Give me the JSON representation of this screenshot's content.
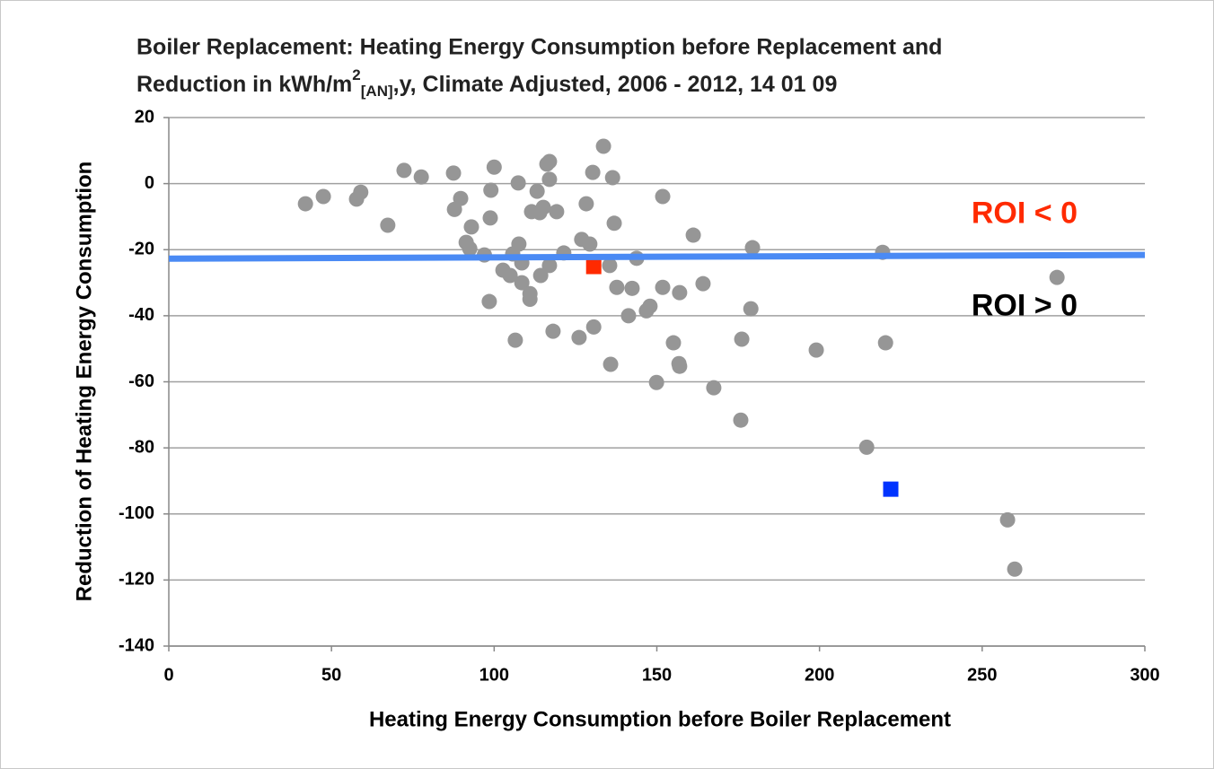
{
  "chart_data": {
    "type": "scatter",
    "title": [
      "Boiler Replacement: Heating Energy Consumption before Replacement and",
      "Reduction in kWh/m",
      "2",
      "[AN]",
      ",y, Climate Adjusted, 2006 - 2012, 14 01 09"
    ],
    "xlabel": "Heating Energy Consumption before Boiler Replacement",
    "ylabel": "Reduction of Heating Energy Consumption",
    "xlim": [
      0,
      300
    ],
    "xticks": [
      0,
      50,
      100,
      150,
      200,
      250,
      300
    ],
    "ylim": [
      -140,
      20
    ],
    "yticks": [
      -140,
      -120,
      -100,
      -80,
      -60,
      -40,
      -20,
      0,
      20
    ],
    "grid": true,
    "series": [
      {
        "color": "#969696",
        "marker": "circle",
        "x": [
          42,
          47.5,
          57.7,
          59,
          67.3,
          72.3,
          77.6,
          87.5,
          87.8,
          89.7,
          91.4,
          93,
          92.5,
          97,
          98.5,
          98.8,
          99,
          100,
          102.7,
          104.9,
          105.7,
          106.5,
          107.4,
          107.6,
          108.5,
          108.5,
          111,
          111,
          111.5,
          113.2,
          114.3,
          114,
          115.1,
          116.2,
          117,
          117,
          117,
          118.1,
          119.2,
          121.4,
          126.1,
          126.9,
          128.3,
          129.4,
          130.3,
          130.6,
          133.6,
          135.5,
          135.8,
          136.4,
          136.9,
          137.7,
          141.3,
          142.4,
          143.8,
          146.8,
          147.9,
          149.9,
          151.8,
          151.8,
          155.1,
          156.8,
          157,
          157,
          161.2,
          164.2,
          167.5,
          175.8,
          176.1,
          178.9,
          179.4,
          199,
          214.5,
          219.4,
          220.3,
          257.8,
          260,
          273
        ],
        "values": [
          -6.1,
          -3.9,
          -4.7,
          -2.6,
          -12.6,
          4,
          2,
          3.2,
          -7.8,
          -4.5,
          -17.8,
          -13.1,
          -19.7,
          -21.6,
          -35.7,
          -10.4,
          -2,
          5,
          -26.2,
          -27.8,
          -21.3,
          -47.4,
          0.2,
          -18.3,
          -30,
          -24,
          -33.3,
          -35,
          -8.5,
          -2.3,
          -27.8,
          -8.8,
          -7.2,
          5.9,
          6.7,
          1.3,
          -24.8,
          -44.7,
          -8.5,
          -21,
          -46.6,
          -16.9,
          -6.1,
          -18.3,
          3.4,
          -43.4,
          11.3,
          -24.8,
          -54.7,
          1.8,
          -12,
          -31.4,
          -40,
          -31.7,
          -22.6,
          -38.5,
          -37.1,
          -60.2,
          -3.9,
          -31.4,
          -48.2,
          -54.5,
          -55.3,
          -33,
          -15.6,
          -30.3,
          -61.8,
          -71.6,
          -47.1,
          -37.9,
          -19.4,
          -50.4,
          -79.8,
          -20.8,
          -48.2,
          -101.8,
          -116.7,
          -28.4
        ]
      },
      {
        "color": "#ff2a00",
        "marker": "square",
        "x": [
          130.6
        ],
        "values": [
          -25.1
        ]
      },
      {
        "color": "#0033ff",
        "marker": "square",
        "x": [
          221.9
        ],
        "values": [
          -92.5
        ]
      }
    ],
    "reference_line": {
      "color": "#4a8af4",
      "x": [
        0,
        300
      ],
      "values": [
        -22.7,
        -21.6
      ]
    },
    "annotations": [
      {
        "text": "ROI < 0",
        "x": 263,
        "y": -9.5,
        "color": "#ff2a00"
      },
      {
        "text": "ROI > 0",
        "x": 263,
        "y": -37.5,
        "color": "#000000"
      }
    ]
  }
}
